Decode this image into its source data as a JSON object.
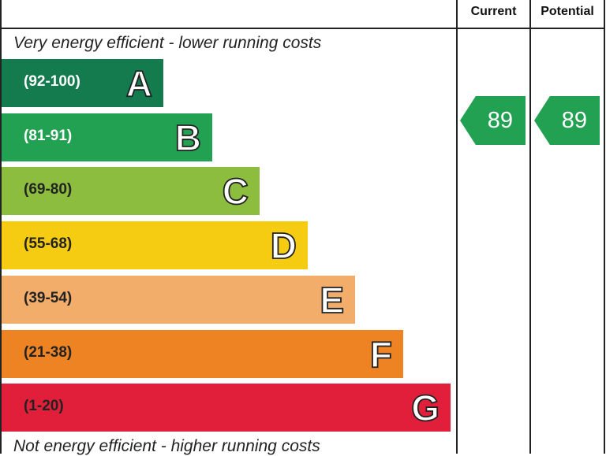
{
  "chart_data": {
    "type": "bar",
    "headers": {
      "current": "Current",
      "potential": "Potential"
    },
    "top_caption": "Very energy efficient - lower running costs",
    "bottom_caption": "Not energy efficient - higher running costs",
    "bands": [
      {
        "letter": "A",
        "range": "(92-100)",
        "color": "#137b4e",
        "text_color": "#ffffff"
      },
      {
        "letter": "B",
        "range": "(81-91)",
        "color": "#22a152",
        "text_color": "#ffffff"
      },
      {
        "letter": "C",
        "range": "(69-80)",
        "color": "#8cbd3f",
        "text_color": "#222222"
      },
      {
        "letter": "D",
        "range": "(55-68)",
        "color": "#f6cc12",
        "text_color": "#222222"
      },
      {
        "letter": "E",
        "range": "(39-54)",
        "color": "#f2ad6b",
        "text_color": "#222222"
      },
      {
        "letter": "F",
        "range": "(21-38)",
        "color": "#ee8323",
        "text_color": "#222222"
      },
      {
        "letter": "G",
        "range": "(1-20)",
        "color": "#e21f3a",
        "text_color": "#222222"
      }
    ],
    "current": {
      "value": "89",
      "band": "B",
      "color": "#22a152"
    },
    "potential": {
      "value": "89",
      "band": "B",
      "color": "#22a152"
    }
  }
}
